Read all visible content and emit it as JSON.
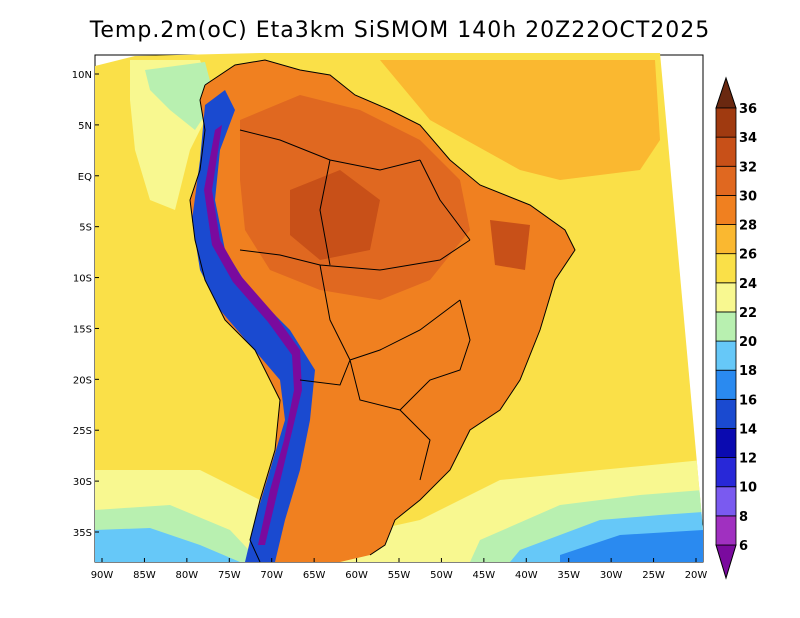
{
  "title": "Temp.2m(oC) Eta3km SiSMOM 140h 20Z22OCT2025",
  "lat_labels": [
    "10N",
    "5N",
    "EQ",
    "5S",
    "10S",
    "15S",
    "20S",
    "25S",
    "30S",
    "35S"
  ],
  "lon_labels": [
    "90W",
    "85W",
    "80W",
    "75W",
    "70W",
    "65W",
    "60W",
    "55W",
    "50W",
    "45W",
    "40W",
    "35W",
    "30W",
    "25W",
    "20W"
  ],
  "colorbar": {
    "labels": [
      "6",
      "8",
      "10",
      "12",
      "14",
      "16",
      "18",
      "20",
      "22",
      "24",
      "26",
      "28",
      "30",
      "32",
      "34",
      "36"
    ],
    "colors": [
      "#7a0a9e",
      "#a030c0",
      "#7a5af0",
      "#2828d8",
      "#0a0ab0",
      "#1a4ad0",
      "#2a8af0",
      "#66c8f8",
      "#b8f0b0",
      "#f8f890",
      "#fae048",
      "#fab830",
      "#f08020",
      "#e06820",
      "#c85018",
      "#a03a10",
      "#6a2810"
    ]
  },
  "map_colors": {
    "ocean_warm": "#fab830",
    "ocean_mild": "#fae048",
    "ocean_cool": "#f8f890",
    "ocean_cold": "#b8f0b0",
    "ocean_colder": "#66c8f8",
    "ocean_coldest": "#2a8af0",
    "land_hot": "#e06820",
    "land_hotter": "#c85018",
    "land_warm": "#f08020",
    "andes_cold": "#1a4ad0",
    "andes_colder": "#7a0a9e",
    "border": "#000000"
  }
}
